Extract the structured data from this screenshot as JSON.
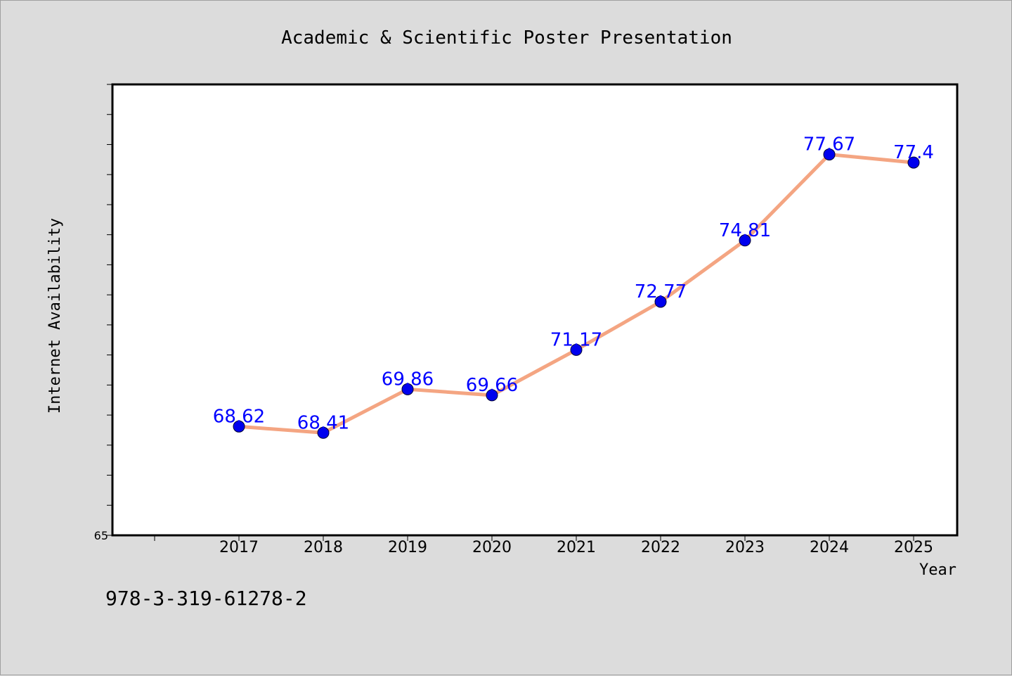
{
  "colors": {
    "background": "#dcdcdc",
    "plot_background": "#ffffff",
    "line": "#f4a582",
    "marker": "#0000ee",
    "label": "#0000ff"
  },
  "footer": {
    "isbn": "978-3-319-61278-2"
  },
  "chart_data": {
    "type": "line",
    "title": "Academic & Scientific Poster Presentation",
    "xlabel": "Year",
    "ylabel": "Internet Availability",
    "x": [
      "2017",
      "2018",
      "2019",
      "2020",
      "2021",
      "2022",
      "2023",
      "2024",
      "2025"
    ],
    "series": [
      {
        "values": [
          68.62,
          68.41,
          69.86,
          69.66,
          71.17,
          72.77,
          74.81,
          77.67,
          77.4
        ],
        "labels": [
          "68.62",
          "68.41",
          "69.86",
          "69.66",
          "71.17",
          "72.77",
          "74.81",
          "77.67",
          "77.4"
        ]
      }
    ],
    "ylim": [
      65,
      80
    ],
    "ytick_labels": [
      "65"
    ],
    "grid": false,
    "legend": "none"
  }
}
